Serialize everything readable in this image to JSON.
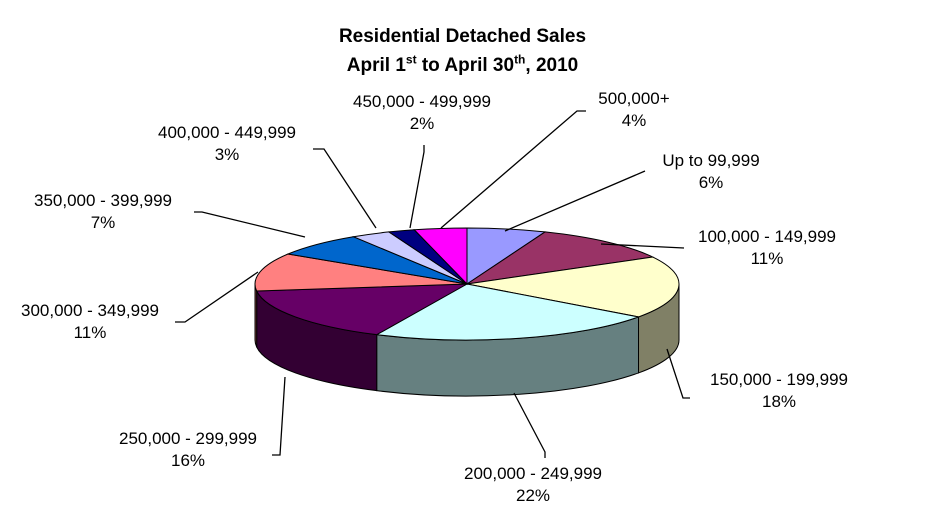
{
  "chart_data": {
    "type": "pie",
    "style": "3d-exploded-none",
    "title_line1": "Residential Detached Sales",
    "title_line2": {
      "a": "April 1",
      "sup1": "st",
      "b": " to April 30",
      "sup2": "th",
      "c": ", 2010"
    },
    "slices": [
      {
        "label": "Up to 99,999",
        "percent": "6%",
        "value": 6,
        "color": "#9999ff"
      },
      {
        "label": "100,000 - 149,999",
        "percent": "11%",
        "value": 11,
        "color": "#993366"
      },
      {
        "label": "150,000 - 199,999",
        "percent": "18%",
        "value": 18,
        "color": "#ffffcc"
      },
      {
        "label": "200,000 - 249,999",
        "percent": "22%",
        "value": 22,
        "color": "#ccffff"
      },
      {
        "label": "250,000 - 299,999",
        "percent": "16%",
        "value": 16,
        "color": "#660066"
      },
      {
        "label": "300,000 - 349,999",
        "percent": "11%",
        "value": 11,
        "color": "#ff8080"
      },
      {
        "label": "350,000 - 399,999",
        "percent": "7%",
        "value": 7,
        "color": "#0066cc"
      },
      {
        "label": "400,000 - 449,999",
        "percent": "3%",
        "value": 3,
        "color": "#ccccff"
      },
      {
        "label": "450,000 - 499,999",
        "percent": "2%",
        "value": 2,
        "color": "#000080"
      },
      {
        "label": "500,000+",
        "percent": "4%",
        "value": 4,
        "color": "#ff00ff"
      }
    ],
    "legend": "none"
  }
}
